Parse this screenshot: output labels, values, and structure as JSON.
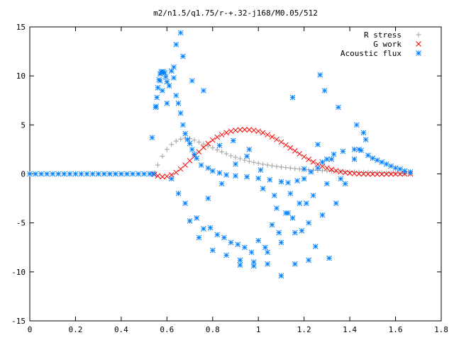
{
  "chart_data": {
    "type": "scatter",
    "title": "m2/n1.5/q1.75/r-+.32-j168/M0.05/512",
    "xlabel": "",
    "ylabel": "",
    "xlim": [
      0,
      1.8
    ],
    "ylim": [
      -15,
      15
    ],
    "x_ticks": [
      0,
      0.2,
      0.4,
      0.6,
      0.8,
      1,
      1.2,
      1.4,
      1.6,
      1.8
    ],
    "x_tick_labels": [
      "0",
      "0.2",
      "0.4",
      "0.6",
      "0.8",
      "1",
      "1.2",
      "1.4",
      "1.6",
      "1.8"
    ],
    "y_ticks": [
      -15,
      -10,
      -5,
      0,
      5,
      10,
      15
    ],
    "y_tick_labels": [
      "-15",
      "-10",
      "-5",
      "0",
      "5",
      "10",
      "15"
    ],
    "grid": false,
    "legend_position": "top-right",
    "series": [
      {
        "name": "R stress",
        "marker": "plus",
        "color": "#a0a0a0",
        "x": [
          0.545,
          0.56,
          0.58,
          0.6,
          0.62,
          0.64,
          0.66,
          0.68,
          0.7,
          0.72,
          0.74,
          0.76,
          0.78,
          0.8,
          0.82,
          0.84,
          0.86,
          0.88,
          0.9,
          0.92,
          0.94,
          0.96,
          0.98,
          1.0,
          1.02,
          1.04,
          1.06,
          1.08,
          1.1,
          1.12,
          1.14,
          1.16,
          1.18,
          1.2,
          1.22,
          1.24,
          1.26,
          1.28,
          1.3,
          1.32,
          1.34,
          1.36,
          1.38,
          1.4,
          1.42,
          1.44,
          1.46,
          1.48,
          1.5,
          1.52,
          1.54,
          1.56,
          1.58,
          1.6,
          1.62,
          1.64,
          1.665
        ],
        "y": [
          0.1,
          0.9,
          1.8,
          2.5,
          3.0,
          3.35,
          3.55,
          3.65,
          3.6,
          3.45,
          3.25,
          3.05,
          2.85,
          2.65,
          2.45,
          2.25,
          2.05,
          1.85,
          1.7,
          1.55,
          1.4,
          1.28,
          1.18,
          1.08,
          0.98,
          0.9,
          0.83,
          0.76,
          0.7,
          0.64,
          0.59,
          0.54,
          0.5,
          0.46,
          0.42,
          0.39,
          0.36,
          0.33,
          0.31,
          0.29,
          0.27,
          0.25,
          0.23,
          0.21,
          0.2,
          0.18,
          0.17,
          0.15,
          0.14,
          0.12,
          0.11,
          0.09,
          0.08,
          0.06,
          0.05,
          0.03,
          0.02
        ]
      },
      {
        "name": "G work",
        "marker": "cross",
        "color": "#ff0000",
        "x": [
          0.545,
          0.56,
          0.58,
          0.6,
          0.62,
          0.64,
          0.66,
          0.68,
          0.7,
          0.72,
          0.74,
          0.76,
          0.78,
          0.8,
          0.82,
          0.84,
          0.86,
          0.88,
          0.9,
          0.92,
          0.94,
          0.96,
          0.98,
          1.0,
          1.02,
          1.04,
          1.06,
          1.08,
          1.1,
          1.12,
          1.14,
          1.16,
          1.18,
          1.2,
          1.22,
          1.24,
          1.26,
          1.28,
          1.3,
          1.32,
          1.34,
          1.36,
          1.38,
          1.4,
          1.42,
          1.44,
          1.46,
          1.48,
          1.5,
          1.52,
          1.54,
          1.56,
          1.58,
          1.6,
          1.62,
          1.64,
          1.665
        ],
        "y": [
          -0.05,
          -0.2,
          -0.3,
          -0.25,
          -0.1,
          0.15,
          0.5,
          0.9,
          1.35,
          1.8,
          2.25,
          2.7,
          3.1,
          3.45,
          3.75,
          4.0,
          4.2,
          4.35,
          4.45,
          4.5,
          4.52,
          4.5,
          4.45,
          4.35,
          4.2,
          4.0,
          3.78,
          3.52,
          3.25,
          2.95,
          2.65,
          2.35,
          2.05,
          1.75,
          1.48,
          1.22,
          0.98,
          0.78,
          0.6,
          0.45,
          0.32,
          0.22,
          0.14,
          0.08,
          0.04,
          0.01,
          0.0,
          -0.02,
          -0.02,
          -0.03,
          -0.03,
          -0.02,
          -0.02,
          -0.01,
          -0.01,
          0.0,
          0.0
        ]
      },
      {
        "name": "Acoustic flux",
        "marker": "star",
        "color": "#0080ff",
        "x": [
          0.0,
          0.025,
          0.05,
          0.075,
          0.1,
          0.125,
          0.15,
          0.175,
          0.2,
          0.225,
          0.25,
          0.275,
          0.3,
          0.325,
          0.35,
          0.375,
          0.4,
          0.425,
          0.45,
          0.475,
          0.5,
          0.525,
          0.54,
          0.535,
          0.55,
          0.553,
          0.556,
          0.56,
          0.565,
          0.57,
          0.575,
          0.58,
          0.585,
          0.59,
          0.595,
          0.6,
          0.61,
          0.62,
          0.63,
          0.64,
          0.65,
          0.66,
          0.67,
          0.68,
          0.69,
          0.7,
          0.71,
          0.72,
          0.73,
          0.75,
          0.78,
          0.8,
          0.83,
          0.86,
          0.9,
          0.95,
          1.0,
          1.05,
          1.1,
          1.13,
          1.17,
          1.2,
          1.23,
          1.26,
          1.28,
          1.3,
          1.33,
          1.37,
          1.42,
          1.45,
          1.48,
          1.5,
          1.52,
          1.54,
          1.56,
          1.58,
          1.6,
          1.62,
          1.64,
          1.665,
          0.62,
          0.65,
          0.68,
          0.73,
          0.78,
          0.84,
          0.9,
          0.96,
          1.02,
          1.08,
          1.14,
          1.2,
          1.26,
          1.32,
          1.38,
          1.44,
          1.47,
          0.7,
          0.76,
          0.82,
          0.88,
          0.94,
          1.0,
          1.06,
          1.12,
          1.18,
          1.24,
          1.3,
          1.36,
          1.42,
          0.74,
          0.8,
          0.86,
          0.92,
          0.98,
          1.04,
          1.1,
          1.16,
          1.22,
          1.28,
          1.34,
          0.83,
          0.89,
          0.95,
          1.01,
          1.07,
          1.13,
          1.19,
          1.25,
          1.31,
          0.92,
          0.98,
          1.04,
          1.1,
          1.16,
          1.22,
          0.79,
          0.85,
          0.91,
          0.97,
          1.03,
          1.09,
          1.15,
          1.21,
          0.67,
          0.71,
          0.66,
          0.63,
          0.6,
          0.58,
          0.57,
          0.64,
          0.76,
          1.15,
          1.27,
          1.29,
          1.35,
          1.43,
          1.46
        ],
        "y": [
          0.0,
          0.0,
          0.0,
          0.0,
          0.0,
          0.0,
          0.0,
          0.0,
          0.0,
          0.0,
          0.0,
          0.0,
          0.0,
          0.0,
          0.0,
          0.0,
          0.0,
          0.0,
          0.0,
          0.0,
          0.0,
          0.0,
          0.0,
          3.7,
          6.8,
          6.9,
          7.8,
          8.8,
          9.6,
          10.2,
          10.4,
          10.45,
          10.4,
          10.3,
          9.9,
          9.4,
          9.0,
          10.5,
          10.9,
          8.0,
          7.2,
          6.2,
          5.0,
          4.1,
          3.5,
          3.1,
          2.5,
          2.0,
          1.6,
          0.9,
          0.6,
          0.3,
          0.1,
          -0.1,
          -0.2,
          -0.3,
          -0.45,
          -0.6,
          -0.8,
          -0.9,
          -0.7,
          -0.5,
          0.2,
          0.6,
          1.2,
          1.5,
          2.0,
          2.3,
          2.5,
          2.4,
          1.9,
          1.6,
          1.4,
          1.2,
          1.0,
          0.8,
          0.6,
          0.5,
          0.3,
          0.2,
          -0.5,
          -2.0,
          -3.0,
          -4.5,
          -2.5,
          -1.0,
          1.0,
          2.5,
          -1.5,
          -3.5,
          -2.0,
          0.5,
          3.0,
          1.5,
          -1.0,
          2.5,
          3.5,
          -4.8,
          -5.6,
          -6.2,
          -7.0,
          -7.5,
          -6.8,
          -5.2,
          -4.0,
          -3.0,
          -2.2,
          -1.0,
          -0.5,
          1.5,
          -6.5,
          -7.8,
          -8.3,
          -8.8,
          -9.0,
          -8.0,
          -7.0,
          -6.0,
          -5.0,
          -4.2,
          -3.0,
          2.9,
          3.4,
          1.8,
          0.4,
          -2.2,
          -4.0,
          -5.8,
          -7.4,
          -8.6,
          -9.3,
          -9.4,
          -9.2,
          -10.4,
          -9.2,
          -8.8,
          -5.5,
          -6.5,
          -7.2,
          -8.0,
          -7.5,
          -6.0,
          -4.5,
          -3.0,
          12.0,
          9.5,
          14.4,
          9.8,
          7.2,
          8.5,
          9.5,
          13.2,
          8.5,
          7.8,
          10.1,
          8.5,
          6.8,
          5.0,
          4.2
        ]
      }
    ]
  }
}
